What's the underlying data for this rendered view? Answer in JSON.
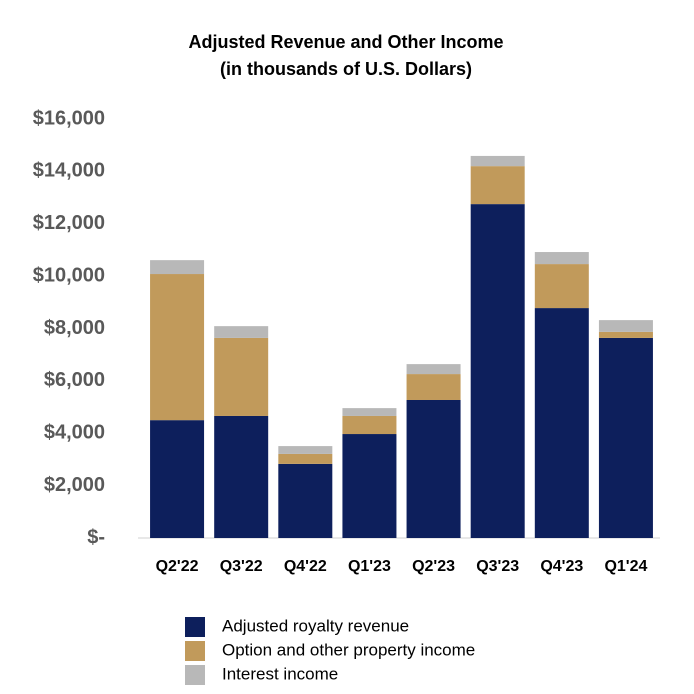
{
  "chart_data": {
    "type": "stacked-bar",
    "title": "Adjusted Revenue and Other Income",
    "subtitle": "(in thousands of U.S. Dollars)",
    "categories": [
      "Q2'22",
      "Q3'22",
      "Q4'22",
      "Q1'23",
      "Q2'23",
      "Q3'23",
      "Q4'23",
      "Q1'24"
    ],
    "series": [
      {
        "name": "Adjusted royalty revenue",
        "color": "#0d1f5c",
        "values": [
          4500,
          4660,
          2830,
          3970,
          5270,
          12750,
          8780,
          7640
        ]
      },
      {
        "name": "Option and other property income",
        "color": "#c19a5b",
        "values": [
          5580,
          2980,
          380,
          690,
          990,
          1450,
          1680,
          230
        ]
      },
      {
        "name": "Interest income",
        "color": "#b8b8b8",
        "values": [
          530,
          450,
          300,
          300,
          380,
          390,
          460,
          450
        ]
      }
    ],
    "ylim": [
      0,
      16000
    ],
    "yticks": [
      {
        "value": 0,
        "label": "$-"
      },
      {
        "value": 2000,
        "label": "$2,000"
      },
      {
        "value": 4000,
        "label": "$4,000"
      },
      {
        "value": 6000,
        "label": "$6,000"
      },
      {
        "value": 8000,
        "label": "$8,000"
      },
      {
        "value": 10000,
        "label": "$10,000"
      },
      {
        "value": 12000,
        "label": "$12,000"
      },
      {
        "value": 14000,
        "label": "$14,000"
      },
      {
        "value": 16000,
        "label": "$16,000"
      }
    ],
    "grid": false,
    "legend": "bottom"
  }
}
